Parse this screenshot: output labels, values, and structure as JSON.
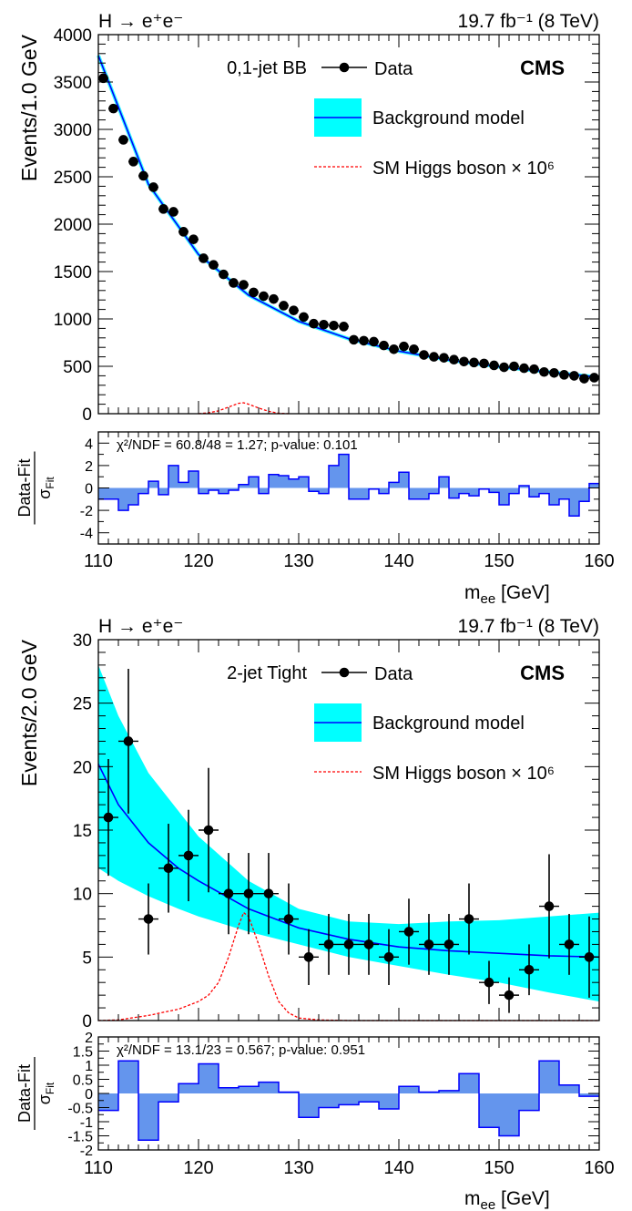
{
  "chart_data": [
    {
      "type": "line",
      "process": "H → e⁺e⁻",
      "luminosity": "19.7 fb⁻¹ (8 TeV)",
      "category": "0,1-jet BB",
      "experiment": "CMS",
      "ylabel": "Events/1.0 GeV",
      "xlabel": "m_ee [GeV]",
      "xlim": [
        110,
        160
      ],
      "ylim": [
        0,
        4000
      ],
      "xticks": [
        110,
        120,
        130,
        140,
        150,
        160
      ],
      "yticks": [
        0,
        500,
        1000,
        1500,
        2000,
        2500,
        3000,
        3500,
        4000
      ],
      "legend": {
        "data": "Data",
        "background": "Background model",
        "signal": "SM Higgs boson × 10⁶"
      },
      "colors": {
        "band": "#00ffff",
        "model": "#0000ff",
        "signal": "#ff0000",
        "ratio_fill": "#6495ed",
        "ratio_line": "#0000ff"
      },
      "data_points": {
        "x": [
          110.5,
          111.5,
          112.5,
          113.5,
          114.5,
          115.5,
          116.5,
          117.5,
          118.5,
          119.5,
          120.5,
          121.5,
          122.5,
          123.5,
          124.5,
          125.5,
          126.5,
          127.5,
          128.5,
          129.5,
          130.5,
          131.5,
          132.5,
          133.5,
          134.5,
          135.5,
          136.5,
          137.5,
          138.5,
          139.5,
          140.5,
          141.5,
          142.5,
          143.5,
          144.5,
          145.5,
          146.5,
          147.5,
          148.5,
          149.5,
          150.5,
          151.5,
          152.5,
          153.5,
          154.5,
          155.5,
          156.5,
          157.5,
          158.5,
          159.5
        ],
        "y": [
          3540,
          3220,
          2890,
          2660,
          2510,
          2390,
          2160,
          2130,
          1920,
          1840,
          1640,
          1570,
          1470,
          1380,
          1360,
          1280,
          1240,
          1210,
          1140,
          1090,
          1020,
          950,
          940,
          930,
          920,
          780,
          770,
          760,
          720,
          680,
          710,
          680,
          620,
          600,
          590,
          570,
          550,
          540,
          530,
          510,
          490,
          500,
          480,
          470,
          440,
          430,
          410,
          400,
          370,
          380
        ]
      },
      "background_model": {
        "x": [
          110,
          115,
          120,
          125,
          130,
          135,
          140,
          145,
          150,
          155,
          160
        ],
        "y": [
          3780,
          2420,
          1680,
          1250,
          975,
          790,
          660,
          565,
          495,
          440,
          385
        ]
      },
      "signal_model": {
        "x": [
          120,
          121,
          122,
          123,
          124,
          124.5,
          125,
          126,
          127,
          128,
          129
        ],
        "y": [
          0,
          10,
          30,
          70,
          110,
          115,
          100,
          60,
          25,
          5,
          0
        ]
      },
      "ratio": {
        "ylabel_num": "Data-Fit",
        "ylabel_den": "σ",
        "ylabel_sub": "Fit",
        "ylim": [
          -5,
          5
        ],
        "yticks": [
          -4,
          -2,
          0,
          2,
          4
        ],
        "annotation": "χ²/NDF = 60.8/48 = 1.27; p-value: 0.101",
        "bin_edges": [
          110,
          111,
          112,
          113,
          114,
          115,
          116,
          117,
          118,
          119,
          120,
          121,
          122,
          123,
          124,
          125,
          126,
          127,
          128,
          129,
          130,
          131,
          132,
          133,
          134,
          135,
          136,
          137,
          138,
          139,
          140,
          141,
          142,
          143,
          144,
          145,
          146,
          147,
          148,
          149,
          150,
          151,
          152,
          153,
          154,
          155,
          156,
          157,
          158,
          159,
          160
        ],
        "values": [
          -1.0,
          -1.0,
          -2.0,
          -1.5,
          -0.5,
          0.6,
          -0.6,
          2.0,
          0.5,
          1.5,
          -0.5,
          -0.2,
          -0.5,
          -0.2,
          0.3,
          1.0,
          -0.5,
          1.2,
          1.1,
          0.8,
          1.0,
          -0.3,
          -0.5,
          2.0,
          3.0,
          -1.0,
          -1.0,
          -0.1,
          -0.5,
          0.5,
          1.4,
          -1.0,
          -1.0,
          -0.5,
          1.0,
          -0.9,
          -0.5,
          -0.7,
          -0.1,
          -0.4,
          -1.5,
          -0.5,
          0.2,
          -0.8,
          -0.5,
          -1.5,
          -1.0,
          -2.5,
          -1.2,
          0.4
        ]
      }
    },
    {
      "type": "line",
      "process": "H → e⁺e⁻",
      "luminosity": "19.7 fb⁻¹ (8 TeV)",
      "category": "2-jet Tight",
      "experiment": "CMS",
      "ylabel": "Events/2.0 GeV",
      "xlabel": "m_ee [GeV]",
      "xlim": [
        110,
        160
      ],
      "ylim": [
        0,
        30
      ],
      "xticks": [
        110,
        120,
        130,
        140,
        150,
        160
      ],
      "yticks": [
        0,
        5,
        10,
        15,
        20,
        25,
        30
      ],
      "legend": {
        "data": "Data",
        "background": "Background model",
        "signal": "SM Higgs boson × 10⁶"
      },
      "colors": {
        "band": "#00ffff",
        "model": "#0000ff",
        "signal": "#ff0000",
        "ratio_fill": "#6495ed",
        "ratio_line": "#0000ff"
      },
      "data_points": {
        "x": [
          111,
          113,
          115,
          117,
          119,
          121,
          123,
          125,
          127,
          129,
          131,
          133,
          135,
          137,
          139,
          141,
          143,
          145,
          147,
          149,
          151,
          153,
          155,
          157,
          159
        ],
        "y": [
          16,
          22,
          8,
          12,
          13,
          15,
          10,
          10,
          10,
          8,
          5,
          6,
          6,
          6,
          5,
          7,
          6,
          6,
          8,
          3,
          2,
          4,
          9,
          6,
          5
        ],
        "yerr": [
          4.6,
          5.7,
          2.8,
          3.5,
          3.6,
          4.9,
          3.2,
          3.2,
          3.2,
          2.8,
          2.2,
          2.4,
          2.4,
          2.4,
          2.2,
          2.6,
          2.4,
          2.4,
          2.8,
          1.7,
          1.4,
          2.0,
          4.1,
          2.4,
          3.2
        ]
      },
      "background_model": {
        "x": [
          110,
          112,
          115,
          118,
          120,
          125,
          130,
          135,
          140,
          145,
          150,
          155,
          160
        ],
        "y": [
          20.2,
          17.0,
          14.0,
          12.0,
          11.0,
          8.8,
          7.3,
          6.4,
          5.8,
          5.5,
          5.3,
          5.1,
          5.0
        ]
      },
      "background_band": {
        "x": [
          110,
          112,
          115,
          118,
          120,
          125,
          130,
          135,
          140,
          145,
          150,
          155,
          160
        ],
        "lower": [
          12.0,
          11.0,
          9.8,
          8.8,
          8.2,
          7.0,
          6.0,
          5.0,
          4.3,
          3.6,
          3.0,
          2.2,
          1.5
        ],
        "upper": [
          28.0,
          24.0,
          19.5,
          16.5,
          14.5,
          11.0,
          8.8,
          7.8,
          7.6,
          7.8,
          7.9,
          8.2,
          8.5
        ]
      },
      "signal_model": {
        "x": [
          110,
          112,
          115,
          118,
          120,
          121,
          122,
          123,
          124,
          124.5,
          125,
          126,
          127,
          128,
          129,
          130,
          132,
          135,
          140,
          145,
          150,
          155,
          160
        ],
        "y": [
          0,
          0.05,
          0.4,
          0.9,
          1.5,
          2.0,
          3.0,
          5.0,
          7.5,
          8.5,
          8.2,
          6.0,
          3.5,
          1.5,
          0.6,
          0.2,
          0.05,
          0,
          0,
          0,
          0,
          0,
          0
        ]
      },
      "ratio": {
        "ylabel_num": "Data-Fit",
        "ylabel_den": "σ",
        "ylabel_sub": "Fit",
        "ylim": [
          -2,
          2
        ],
        "yticks": [
          -2,
          -1.5,
          -1,
          -0.5,
          0,
          0.5,
          1,
          1.5,
          2
        ],
        "annotation": "χ²/NDF = 13.1/23 = 0.567; p-value: 0.951",
        "bin_edges": [
          110,
          112,
          114,
          116,
          118,
          120,
          122,
          124,
          126,
          128,
          130,
          132,
          134,
          136,
          138,
          140,
          142,
          144,
          146,
          148,
          150,
          152,
          154,
          156,
          158,
          160
        ],
        "values": [
          -0.6,
          1.15,
          -1.65,
          -0.3,
          0.35,
          1.05,
          0.2,
          0.25,
          0.4,
          0.05,
          -0.85,
          -0.5,
          -0.4,
          -0.3,
          -0.55,
          0.25,
          0.05,
          0.1,
          0.7,
          -1.2,
          -1.5,
          -0.6,
          1.15,
          0.3,
          -0.1
        ]
      }
    }
  ]
}
